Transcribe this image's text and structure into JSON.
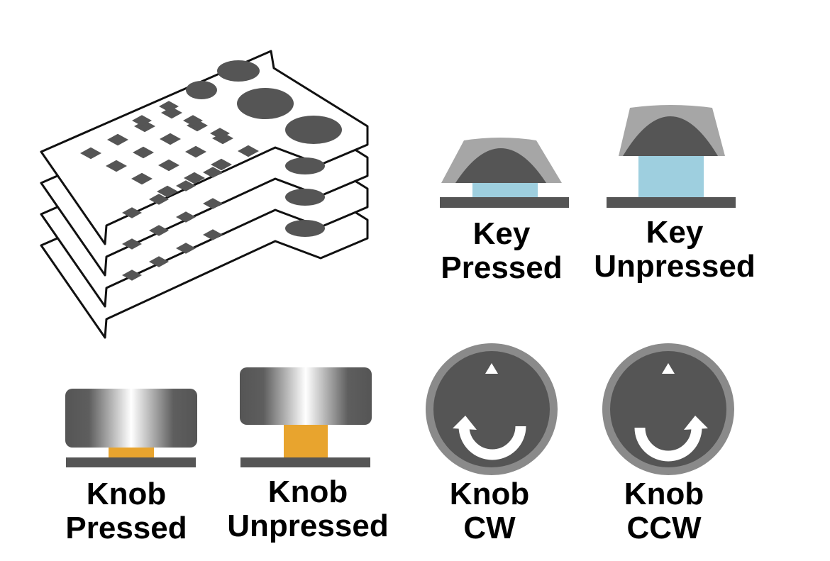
{
  "colors": {
    "dark": "#555555",
    "outline": "#111111",
    "key_blue": "#9ecfdf",
    "knob_orange": "#e8a42e",
    "knob_ring": "#888888",
    "base": "#555555"
  },
  "icons": {
    "layers": "stacked-keypad-layers-icon",
    "key_pressed": "key-pressed-icon",
    "key_unpressed": "key-unpressed-icon",
    "knob_pressed": "knob-pressed-icon",
    "knob_unpressed": "knob-unpressed-icon",
    "knob_cw": "knob-clockwise-icon",
    "knob_ccw": "knob-counterclockwise-icon"
  },
  "labels": {
    "key_pressed": {
      "line1": "Key",
      "line2": "Pressed"
    },
    "key_unpressed": {
      "line1": "Key",
      "line2": "Unpressed"
    },
    "knob_pressed": {
      "line1": "Knob",
      "line2": "Pressed"
    },
    "knob_unpressed": {
      "line1": "Knob",
      "line2": "Unpressed"
    },
    "knob_cw": {
      "line1": "Knob",
      "line2": "CW"
    },
    "knob_ccw": {
      "line1": "Knob",
      "line2": "CCW"
    }
  }
}
